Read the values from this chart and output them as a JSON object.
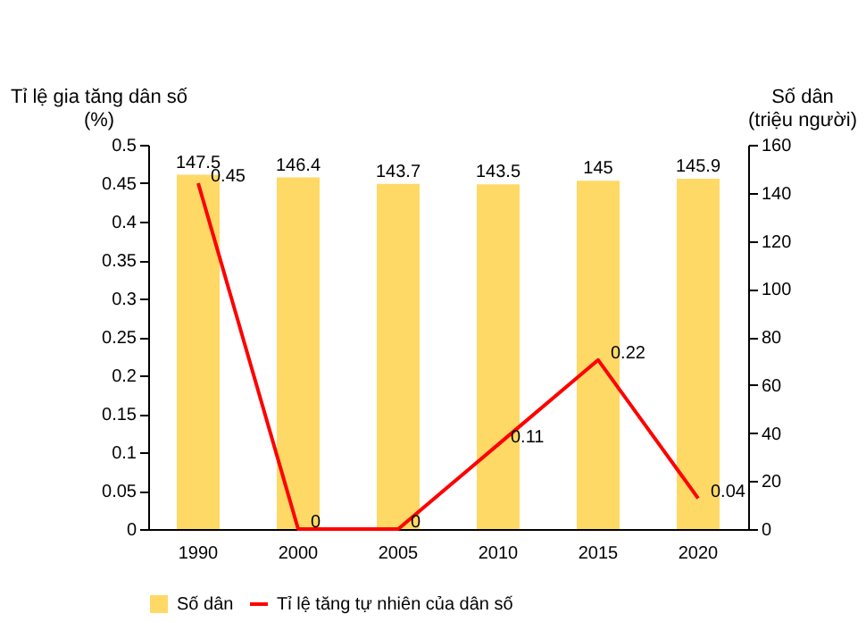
{
  "chart_data": {
    "type": "bar",
    "categories": [
      "1990",
      "2000",
      "2005",
      "2010",
      "2015",
      "2020"
    ],
    "ylabel": "Tỉ lệ gia tăng dân số\n(%)",
    "y2label": "Số dân\n(triệu người)",
    "series": [
      {
        "name": "Số dân",
        "axis": "y2",
        "color": "#ffd966",
        "values": [
          147.5,
          146.4,
          143.7,
          143.5,
          145,
          145.9
        ]
      },
      {
        "name": "Tỉ lệ tăng tự nhiên của dân số",
        "type": "line",
        "axis": "y",
        "color": "#ff0000",
        "values": [
          0.45,
          0,
          0,
          0.11,
          0.22,
          0.04
        ]
      }
    ],
    "ylim": [
      0,
      0.5
    ],
    "yticks": [
      0,
      0.05,
      0.1,
      0.15,
      0.2,
      0.25,
      0.3,
      0.35,
      0.4,
      0.45,
      0.5
    ],
    "y2lim": [
      0,
      160
    ],
    "y2ticks": [
      0,
      20,
      40,
      60,
      80,
      100,
      120,
      140,
      160
    ],
    "data_labels": true,
    "grid": false,
    "legend": "bottom",
    "marker": "none",
    "line_style": "solid"
  }
}
